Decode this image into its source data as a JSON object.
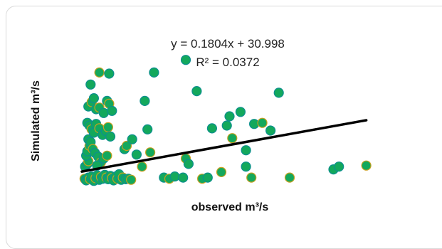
{
  "chart_data": {
    "type": "scatter",
    "xlabel": "observed m³/s",
    "ylabel": "Simulated m³/s",
    "annotations": [
      "y = 0.1804x + 30.998",
      "R² = 0.0372"
    ],
    "trendline": {
      "slope": 0.1804,
      "intercept": 30.998
    },
    "xlim": [
      0,
      540
    ],
    "ylim": [
      0,
      260
    ],
    "grid": false,
    "legend": "none",
    "colors": {
      "point_fill": "#13a85c",
      "point_edge_a": "#0d8f8f",
      "point_edge_b": "#c8a020",
      "trendline": "#000000"
    },
    "points": [
      [
        5,
        18
      ],
      [
        8,
        15
      ],
      [
        12,
        20
      ],
      [
        15,
        17
      ],
      [
        18,
        22
      ],
      [
        22,
        14
      ],
      [
        25,
        19
      ],
      [
        28,
        24
      ],
      [
        32,
        16
      ],
      [
        35,
        21
      ],
      [
        38,
        18
      ],
      [
        42,
        25
      ],
      [
        45,
        20
      ],
      [
        48,
        17
      ],
      [
        52,
        23
      ],
      [
        55,
        19
      ],
      [
        58,
        15
      ],
      [
        62,
        22
      ],
      [
        65,
        18
      ],
      [
        68,
        26
      ],
      [
        72,
        16
      ],
      [
        75,
        20
      ],
      [
        80,
        17
      ],
      [
        85,
        18
      ],
      [
        90,
        16
      ],
      [
        6,
        40
      ],
      [
        10,
        45
      ],
      [
        12,
        50
      ],
      [
        8,
        60
      ],
      [
        10,
        68
      ],
      [
        14,
        78
      ],
      [
        12,
        90
      ],
      [
        16,
        85
      ],
      [
        20,
        72
      ],
      [
        24,
        65
      ],
      [
        30,
        58
      ],
      [
        35,
        48
      ],
      [
        28,
        42
      ],
      [
        40,
        55
      ],
      [
        46,
        60
      ],
      [
        10,
        120
      ],
      [
        14,
        115
      ],
      [
        18,
        108
      ],
      [
        22,
        102
      ],
      [
        26,
        118
      ],
      [
        32,
        110
      ],
      [
        38,
        98
      ],
      [
        44,
        105
      ],
      [
        48,
        112
      ],
      [
        52,
        95
      ],
      [
        12,
        150
      ],
      [
        18,
        158
      ],
      [
        22,
        165
      ],
      [
        26,
        145
      ],
      [
        32,
        148
      ],
      [
        40,
        138
      ],
      [
        46,
        160
      ],
      [
        50,
        155
      ],
      [
        55,
        142
      ],
      [
        16,
        190
      ],
      [
        32,
        212
      ],
      [
        50,
        210
      ],
      [
        78,
        72
      ],
      [
        82,
        78
      ],
      [
        92,
        90
      ],
      [
        100,
        62
      ],
      [
        110,
        40
      ],
      [
        115,
        160
      ],
      [
        120,
        108
      ],
      [
        125,
        66
      ],
      [
        132,
        212
      ],
      [
        150,
        20
      ],
      [
        160,
        18
      ],
      [
        170,
        22
      ],
      [
        185,
        20
      ],
      [
        190,
        55
      ],
      [
        195,
        45
      ],
      [
        210,
        178
      ],
      [
        220,
        18
      ],
      [
        230,
        20
      ],
      [
        238,
        110
      ],
      [
        255,
        30
      ],
      [
        265,
        115
      ],
      [
        270,
        132
      ],
      [
        275,
        92
      ],
      [
        290,
        140
      ],
      [
        300,
        40
      ],
      [
        310,
        20
      ],
      [
        300,
        70
      ],
      [
        315,
        118
      ],
      [
        330,
        120
      ],
      [
        345,
        106
      ],
      [
        360,
        175
      ],
      [
        380,
        20
      ],
      [
        460,
        35
      ],
      [
        470,
        40
      ],
      [
        520,
        42
      ],
      [
        190,
        235
      ]
    ]
  }
}
